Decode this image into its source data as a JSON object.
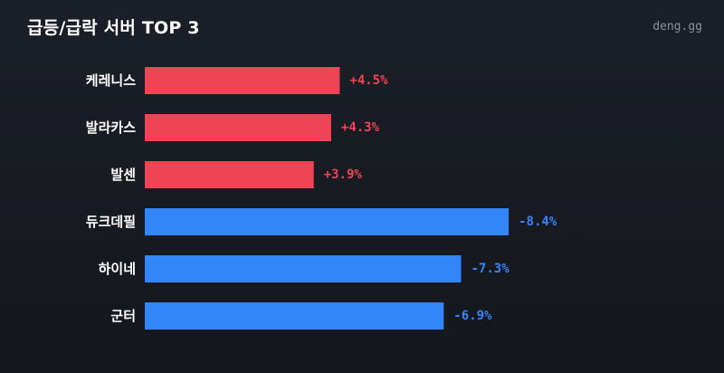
{
  "header": {
    "title": "급등/급락 서버 TOP 3",
    "watermark": "deng.gg"
  },
  "colors": {
    "up": "#ef4455",
    "down": "#3385f8",
    "background": "#181b22"
  },
  "chart_data": {
    "type": "bar",
    "orientation": "horizontal",
    "title": "급등/급락 서버 TOP 3",
    "xlabel": "",
    "ylabel": "",
    "grid": false,
    "categories": [
      "케레니스",
      "발라카스",
      "발센",
      "듀크데필",
      "하이네",
      "군터"
    ],
    "values": [
      4.5,
      4.3,
      3.9,
      -8.4,
      -7.3,
      -6.9
    ],
    "value_labels": [
      "+4.5%",
      "+4.3%",
      "+3.9%",
      "-8.4%",
      "-7.3%",
      "-6.9%"
    ],
    "bar_length_basis": "absolute value",
    "xlim": [
      0,
      9.4
    ]
  }
}
